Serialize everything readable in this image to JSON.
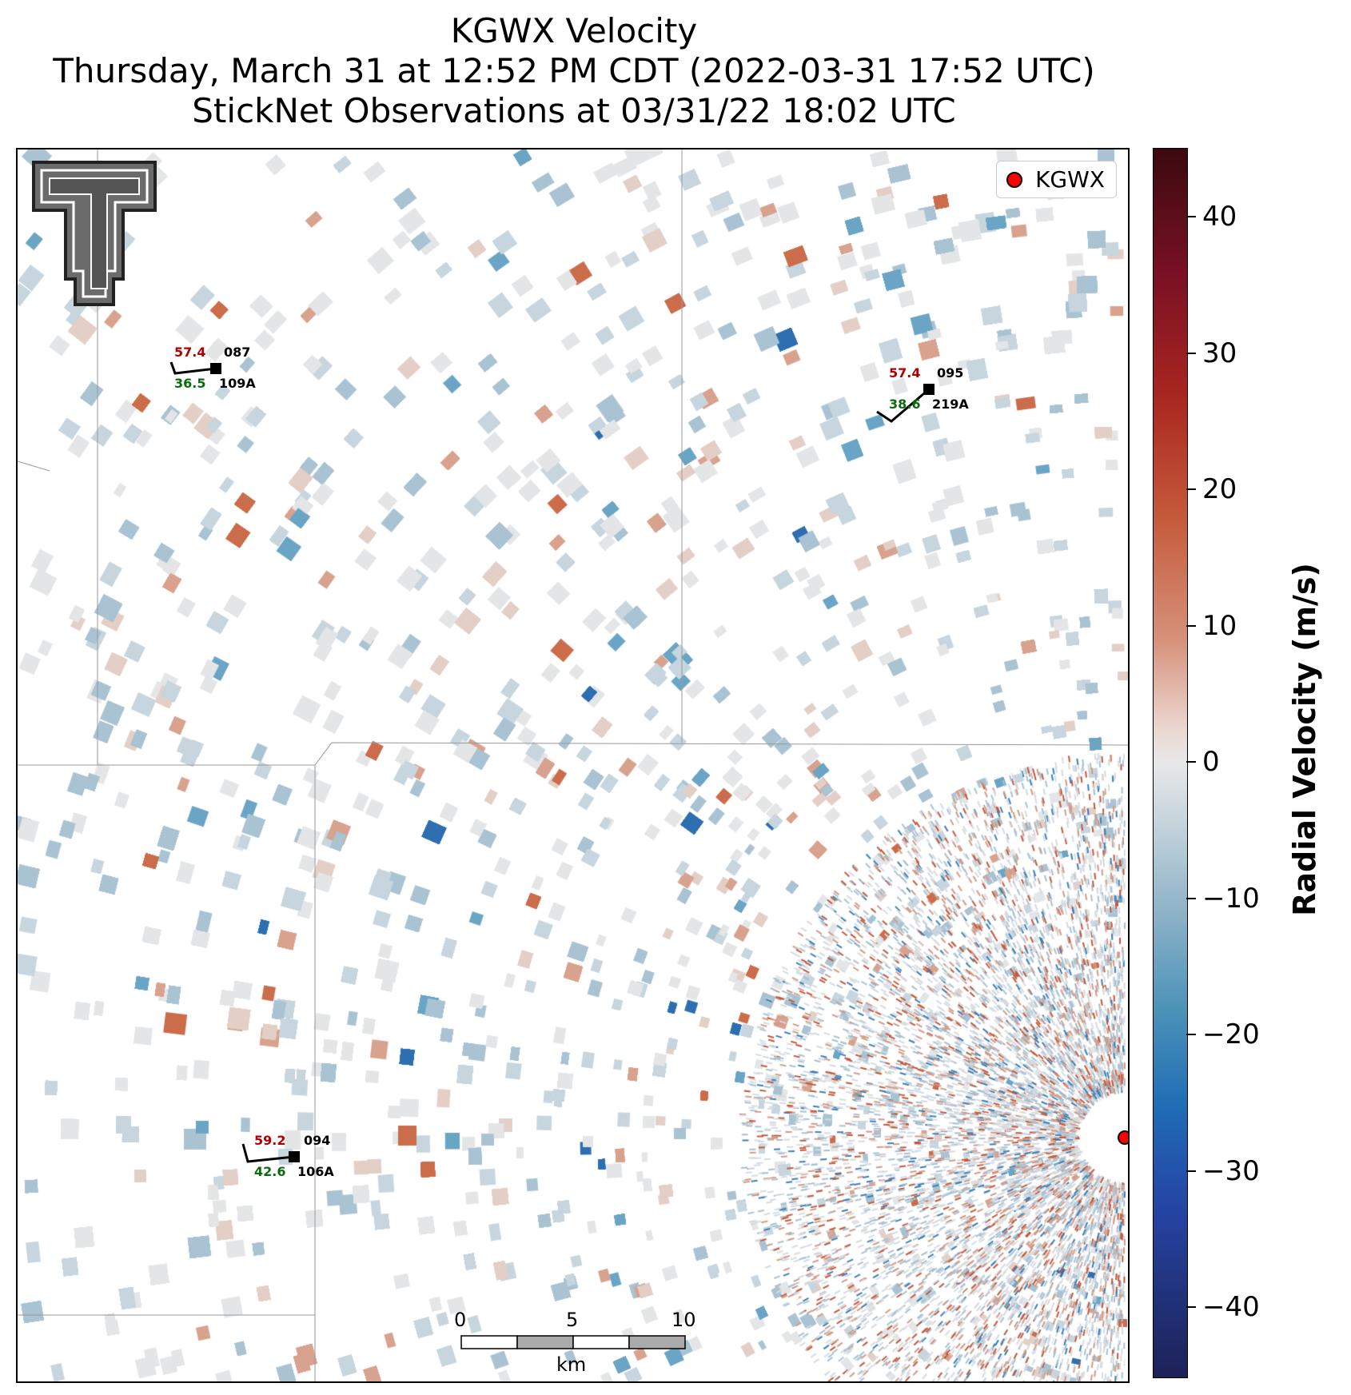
{
  "title": {
    "line1": "KGWX Velocity",
    "line2": "Thursday, March 31 at 12:52 PM CDT (2022-03-31 17:52 UTC)",
    "line3": "StickNet Observations at 03/31/22 18:02 UTC"
  },
  "legend": {
    "label": "KGWX"
  },
  "colorbar": {
    "title": "Radial Velocity (m/s)",
    "ticks": [
      "40",
      "30",
      "20",
      "10",
      "0",
      "−10",
      "−20",
      "−30",
      "−40"
    ],
    "range": [
      -45,
      45
    ]
  },
  "stations": [
    {
      "id": "109A",
      "temp": "57.4",
      "dew": "36.5",
      "dir": "087"
    },
    {
      "id": "219A",
      "temp": "57.4",
      "dew": "38.6",
      "dir": "095"
    },
    {
      "id": "106A",
      "temp": "59.2",
      "dew": "42.6",
      "dir": "094"
    }
  ],
  "scalebar": {
    "ticks": [
      "0",
      "5",
      "10"
    ],
    "unit": "km"
  },
  "colors": {
    "positive": "#c55a3b",
    "negative": "#4c93b8",
    "radar_marker": "#ff0000"
  },
  "logo": {
    "name": "texas-tech-double-t-logo"
  }
}
